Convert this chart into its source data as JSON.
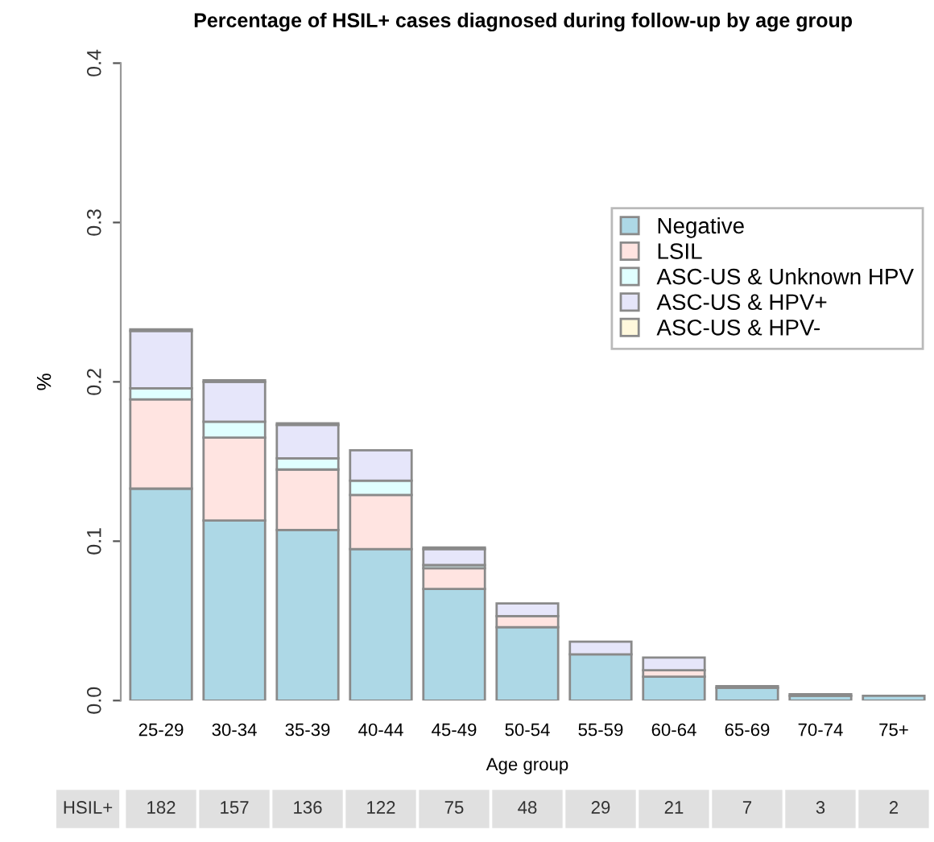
{
  "chart_data": {
    "type": "bar",
    "title": "Percentage of HSIL+ cases diagnosed during follow-up by age group",
    "xlabel": "Age group",
    "ylabel": "%",
    "categories": [
      "25-29",
      "30-34",
      "35-39",
      "40-44",
      "45-49",
      "50-54",
      "55-59",
      "60-64",
      "65-69",
      "70-74",
      "75+"
    ],
    "stacked": true,
    "series": [
      {
        "name": "Negative",
        "color": "#add8e6",
        "values": [
          0.133,
          0.113,
          0.107,
          0.095,
          0.07,
          0.046,
          0.029,
          0.015,
          0.008,
          0.003,
          0.003
        ]
      },
      {
        "name": "LSIL",
        "color": "#ffe4e1",
        "values": [
          0.056,
          0.052,
          0.038,
          0.034,
          0.013,
          0.007,
          null,
          0.004,
          null,
          null,
          null
        ]
      },
      {
        "name": "ASC-US & Unknown HPV",
        "color": "#e0ffff",
        "values": [
          0.007,
          0.01,
          0.007,
          0.009,
          0.002,
          null,
          null,
          null,
          null,
          null,
          null
        ]
      },
      {
        "name": "ASC-US & HPV+",
        "color": "#e6e6fa",
        "values": [
          0.036,
          0.025,
          0.021,
          0.019,
          0.01,
          0.008,
          0.008,
          0.008,
          0.001,
          0.001,
          null
        ]
      },
      {
        "name": "ASC-US & HPV-",
        "color": "#fff8dc",
        "values": [
          0.001,
          0.001,
          0.001,
          null,
          0.001,
          null,
          null,
          null,
          null,
          null,
          null
        ]
      }
    ],
    "ylim": [
      0,
      0.4
    ],
    "yticks": [
      {
        "value": 0,
        "label": "0.0"
      },
      0.1,
      0.2,
      0.3,
      0.4
    ],
    "legend": "top right",
    "grid": false,
    "annotations": [
      "HSIL+",
      "182",
      "157",
      "136",
      "122",
      "75",
      "48",
      "29",
      "21",
      "7",
      "3",
      "2"
    ]
  }
}
